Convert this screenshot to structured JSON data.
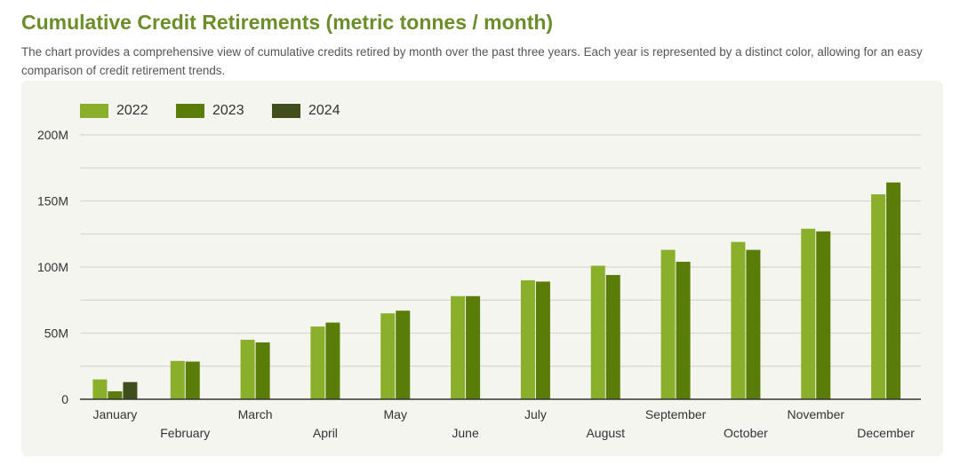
{
  "header": {
    "title": "Cumulative Credit Retirements (metric tonnes / month)",
    "description": "The chart provides a comprehensive view of cumulative credits retired by month over the past three years. Each year is represented by a distinct color, allowing for an easy comparison of credit retirement trends."
  },
  "colors": {
    "2022": "#8aaf2a",
    "2023": "#5a7d0a",
    "2024": "#3f4f1c",
    "grid": "#d7d9d0",
    "axis": "#333333"
  },
  "chart_data": {
    "type": "bar",
    "title": "",
    "xlabel": "",
    "ylabel": "",
    "ylim": [
      0,
      200000000
    ],
    "yticks": [
      "0",
      "50M",
      "100M",
      "150M",
      "200M"
    ],
    "categories": [
      "January",
      "February",
      "March",
      "April",
      "May",
      "June",
      "July",
      "August",
      "September",
      "October",
      "November",
      "December"
    ],
    "legend_position": "top-left",
    "grid": true,
    "series": [
      {
        "name": "2022",
        "values": [
          15000000,
          29000000,
          45000000,
          55000000,
          65000000,
          78000000,
          90000000,
          101000000,
          113000000,
          119000000,
          129000000,
          155000000
        ]
      },
      {
        "name": "2023",
        "values": [
          6000000,
          28500000,
          43000000,
          58000000,
          67000000,
          78000000,
          89000000,
          94000000,
          104000000,
          113000000,
          127000000,
          164000000
        ]
      },
      {
        "name": "2024",
        "values": [
          13000000,
          null,
          null,
          null,
          null,
          null,
          null,
          null,
          null,
          null,
          null,
          null
        ]
      }
    ]
  }
}
